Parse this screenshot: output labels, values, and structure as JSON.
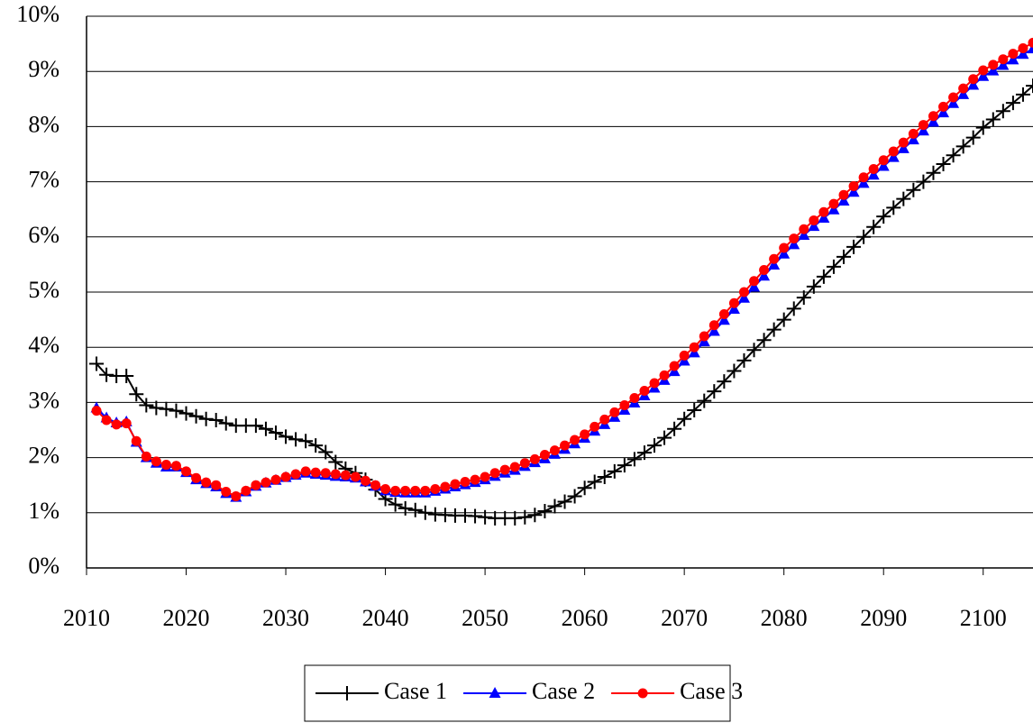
{
  "chart_data": {
    "type": "line",
    "x": [
      2011,
      2012,
      2013,
      2014,
      2015,
      2016,
      2017,
      2018,
      2019,
      2020,
      2021,
      2022,
      2023,
      2024,
      2025,
      2026,
      2027,
      2028,
      2029,
      2030,
      2031,
      2032,
      2033,
      2034,
      2035,
      2036,
      2037,
      2038,
      2039,
      2040,
      2041,
      2042,
      2043,
      2044,
      2045,
      2046,
      2047,
      2048,
      2049,
      2050,
      2051,
      2052,
      2053,
      2054,
      2055,
      2056,
      2057,
      2058,
      2059,
      2060,
      2061,
      2062,
      2063,
      2064,
      2065,
      2066,
      2067,
      2068,
      2069,
      2070,
      2071,
      2072,
      2073,
      2074,
      2075,
      2076,
      2077,
      2078,
      2079,
      2080,
      2081,
      2082,
      2083,
      2084,
      2085,
      2086,
      2087,
      2088,
      2089,
      2090,
      2091,
      2092,
      2093,
      2094,
      2095,
      2096,
      2097,
      2098,
      2099,
      2100,
      2101,
      2102,
      2103,
      2104,
      2105
    ],
    "series": [
      {
        "name": "Case 1",
        "color": "#000000",
        "marker": "plus",
        "values": [
          3.7,
          3.5,
          3.48,
          3.48,
          3.15,
          2.95,
          2.9,
          2.88,
          2.85,
          2.8,
          2.75,
          2.7,
          2.68,
          2.62,
          2.58,
          2.58,
          2.58,
          2.52,
          2.45,
          2.38,
          2.33,
          2.3,
          2.22,
          2.1,
          1.92,
          1.8,
          1.72,
          1.6,
          1.42,
          1.25,
          1.15,
          1.08,
          1.05,
          1.0,
          0.97,
          0.96,
          0.95,
          0.95,
          0.94,
          0.92,
          0.9,
          0.9,
          0.9,
          0.92,
          0.96,
          1.03,
          1.12,
          1.2,
          1.3,
          1.45,
          1.56,
          1.65,
          1.75,
          1.86,
          1.97,
          2.09,
          2.22,
          2.36,
          2.52,
          2.7,
          2.86,
          3.03,
          3.2,
          3.38,
          3.57,
          3.76,
          3.95,
          4.13,
          4.32,
          4.5,
          4.7,
          4.9,
          5.1,
          5.28,
          5.46,
          5.64,
          5.82,
          6.0,
          6.18,
          6.37,
          6.53,
          6.69,
          6.85,
          7.0,
          7.16,
          7.32,
          7.48,
          7.64,
          7.8,
          7.98,
          8.13,
          8.28,
          8.43,
          8.58,
          8.74
        ]
      },
      {
        "name": "Case 2",
        "color": "#0000ff",
        "marker": "triangle",
        "values": [
          2.9,
          2.72,
          2.63,
          2.65,
          2.28,
          2.0,
          1.9,
          1.83,
          1.83,
          1.73,
          1.6,
          1.53,
          1.47,
          1.35,
          1.28,
          1.38,
          1.48,
          1.54,
          1.59,
          1.64,
          1.68,
          1.72,
          1.7,
          1.68,
          1.66,
          1.65,
          1.63,
          1.56,
          1.48,
          1.4,
          1.37,
          1.36,
          1.36,
          1.36,
          1.39,
          1.43,
          1.47,
          1.51,
          1.55,
          1.6,
          1.66,
          1.72,
          1.77,
          1.84,
          1.91,
          1.98,
          2.06,
          2.15,
          2.25,
          2.35,
          2.48,
          2.6,
          2.73,
          2.86,
          2.99,
          3.12,
          3.26,
          3.4,
          3.56,
          3.75,
          3.9,
          4.1,
          4.29,
          4.49,
          4.69,
          4.89,
          5.09,
          5.29,
          5.49,
          5.69,
          5.86,
          6.03,
          6.19,
          6.34,
          6.49,
          6.65,
          6.81,
          6.97,
          7.12,
          7.28,
          7.44,
          7.6,
          7.76,
          7.92,
          8.08,
          8.25,
          8.42,
          8.58,
          8.75,
          8.91,
          9.01,
          9.11,
          9.21,
          9.31,
          9.41
        ]
      },
      {
        "name": "Case 3",
        "color": "#ff0000",
        "marker": "circle",
        "values": [
          2.85,
          2.68,
          2.6,
          2.62,
          2.3,
          2.02,
          1.93,
          1.87,
          1.85,
          1.75,
          1.63,
          1.55,
          1.5,
          1.38,
          1.3,
          1.4,
          1.5,
          1.55,
          1.6,
          1.65,
          1.7,
          1.75,
          1.73,
          1.72,
          1.7,
          1.68,
          1.65,
          1.58,
          1.5,
          1.43,
          1.4,
          1.4,
          1.4,
          1.4,
          1.43,
          1.47,
          1.52,
          1.56,
          1.6,
          1.65,
          1.72,
          1.78,
          1.83,
          1.9,
          1.97,
          2.05,
          2.13,
          2.22,
          2.32,
          2.42,
          2.56,
          2.69,
          2.82,
          2.95,
          3.08,
          3.21,
          3.35,
          3.49,
          3.66,
          3.85,
          4.0,
          4.2,
          4.4,
          4.6,
          4.8,
          5.0,
          5.2,
          5.4,
          5.6,
          5.8,
          5.97,
          6.14,
          6.3,
          6.45,
          6.6,
          6.76,
          6.92,
          7.08,
          7.23,
          7.39,
          7.55,
          7.71,
          7.87,
          8.03,
          8.19,
          8.36,
          8.53,
          8.69,
          8.86,
          9.02,
          9.12,
          9.22,
          9.32,
          9.42,
          9.52
        ]
      }
    ],
    "xlim": [
      2010,
      2105
    ],
    "xticks": [
      2010,
      2020,
      2030,
      2040,
      2050,
      2060,
      2070,
      2080,
      2090,
      2100
    ],
    "ylim": [
      0,
      10
    ],
    "yticks": [
      {
        "value": 0,
        "label": "0%"
      },
      {
        "value": 1,
        "label": "1%"
      },
      {
        "value": 2,
        "label": "2%"
      },
      {
        "value": 3,
        "label": "3%"
      },
      {
        "value": 4,
        "label": "4%"
      },
      {
        "value": 5,
        "label": "5%"
      },
      {
        "value": 6,
        "label": "6%"
      },
      {
        "value": 7,
        "label": "7%"
      },
      {
        "value": 8,
        "label": "8%"
      },
      {
        "value": 9,
        "label": "9%"
      },
      {
        "value": 10,
        "label": "10%"
      }
    ],
    "grid": true,
    "legend": "bottom"
  }
}
